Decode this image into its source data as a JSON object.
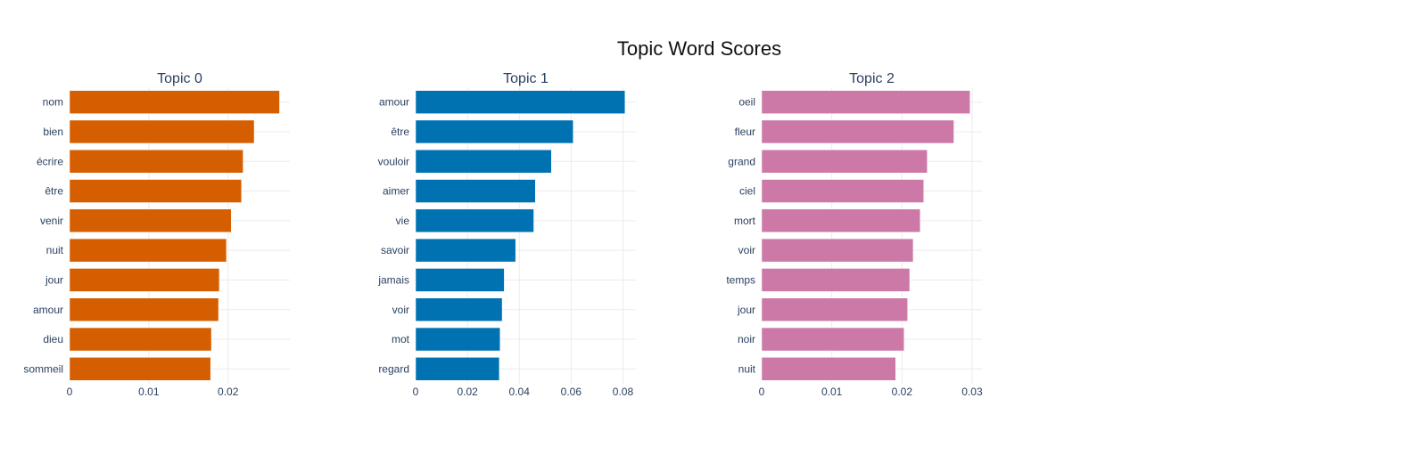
{
  "title": "Topic Word Scores",
  "chart_data": [
    {
      "type": "bar",
      "orientation": "horizontal",
      "title": "Topic 0",
      "color": "#D55E00",
      "categories": [
        "nom",
        "bien",
        "écrire",
        "être",
        "venir",
        "nuit",
        "jour",
        "amour",
        "dieu",
        "sommeil"
      ],
      "values": [
        0.0265,
        0.0233,
        0.0219,
        0.0217,
        0.0204,
        0.0198,
        0.0189,
        0.0188,
        0.0179,
        0.0178
      ],
      "xlim": [
        0,
        0.0278
      ],
      "xticks": [
        0,
        0.01,
        0.02
      ],
      "xtick_labels": [
        "0",
        "0.01",
        "0.02"
      ]
    },
    {
      "type": "bar",
      "orientation": "horizontal",
      "title": "Topic 1",
      "color": "#0072B2",
      "categories": [
        "amour",
        "être",
        "vouloir",
        "aimer",
        "vie",
        "savoir",
        "jamais",
        "voir",
        "mot",
        "regard"
      ],
      "values": [
        0.0808,
        0.0608,
        0.0524,
        0.0462,
        0.0456,
        0.0386,
        0.0342,
        0.0334,
        0.0326,
        0.0323
      ],
      "xlim": [
        0,
        0.085
      ],
      "xticks": [
        0,
        0.02,
        0.04,
        0.06,
        0.08
      ],
      "xtick_labels": [
        "0",
        "0.02",
        "0.04",
        "0.06",
        "0.08"
      ]
    },
    {
      "type": "bar",
      "orientation": "horizontal",
      "title": "Topic 2",
      "color": "#CC79A7",
      "categories": [
        "oeil",
        "fleur",
        "grand",
        "ciel",
        "mort",
        "voir",
        "temps",
        "jour",
        "noir",
        "nuit"
      ],
      "values": [
        0.0297,
        0.0274,
        0.0236,
        0.0231,
        0.0226,
        0.0216,
        0.0211,
        0.0208,
        0.0203,
        0.0191
      ],
      "xlim": [
        0,
        0.0314
      ],
      "xticks": [
        0,
        0.01,
        0.02,
        0.03
      ],
      "xtick_labels": [
        "0",
        "0.01",
        "0.02",
        "0.03"
      ]
    }
  ]
}
